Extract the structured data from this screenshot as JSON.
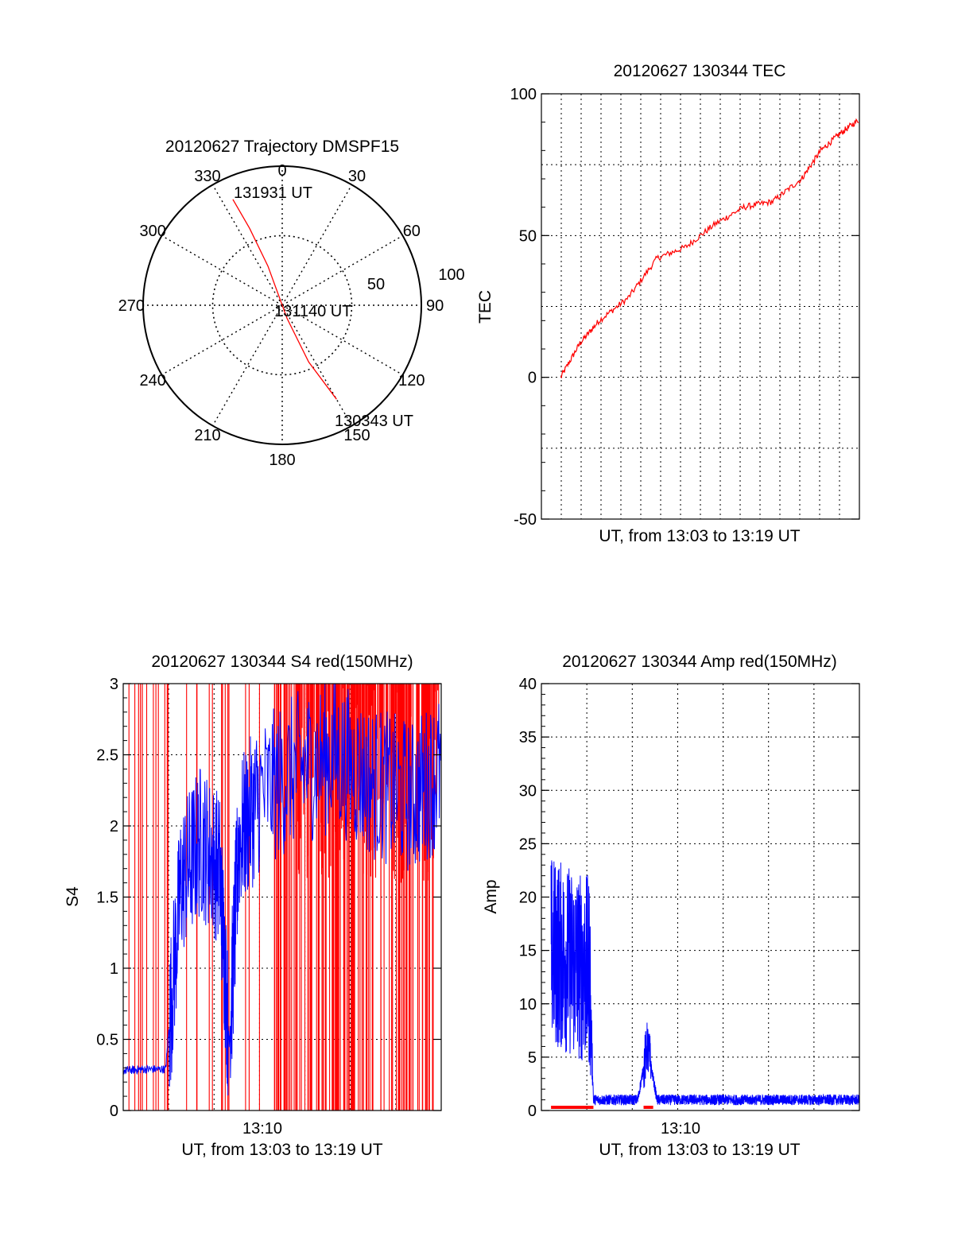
{
  "colors": {
    "red": "#ff0000",
    "blue": "#0000ff",
    "axis": "#000000",
    "grid": "#000000"
  },
  "chart_data": [
    {
      "type": "polar",
      "title": "20120627 Trajectory DMSPF15",
      "angle_labels": [
        "0",
        "30",
        "60",
        "90",
        "120",
        "150",
        "180",
        "210",
        "240",
        "270",
        "300",
        "330"
      ],
      "radius_labels": [
        "50",
        "100"
      ],
      "radius_max": 100,
      "grid": true,
      "point_labels": {
        "end": "131931 UT",
        "mid": "131140 UT",
        "start": "130343 UT"
      },
      "trajectory": {
        "color": "red",
        "points": [
          {
            "az": 335,
            "zen": 84
          },
          {
            "az": 337,
            "zen": 60
          },
          {
            "az": 340,
            "zen": 30
          },
          {
            "az": 160,
            "zen": 10
          },
          {
            "az": 155,
            "zen": 45
          },
          {
            "az": 150,
            "zen": 78
          }
        ]
      }
    },
    {
      "type": "line",
      "title": "20120627 130344 TEC",
      "xlabel": "UT, from 13:03 to 13:19 UT",
      "ylabel": "TEC",
      "ylim": [
        -50,
        100
      ],
      "yticks": [
        "100",
        "50",
        "0",
        "-50"
      ],
      "xlim_minutes": [
        13.0,
        29.5
      ],
      "grid": true,
      "series": [
        {
          "color": "red",
          "x": [
            14.0,
            15.0,
            16.0,
            17.5,
            19.0,
            20.5,
            22.0,
            23.5,
            25.0,
            26.5,
            27.5,
            28.5,
            29.5
          ],
          "y": [
            0,
            12,
            20,
            28,
            42,
            46,
            54,
            60,
            62,
            70,
            80,
            86,
            91
          ]
        }
      ]
    },
    {
      "type": "line",
      "title": "20120627 130344 S4 red(150MHz)",
      "xlabel": "UT, from 13:03 to 13:19 UT",
      "ylabel": "S4",
      "ylim": [
        0,
        3
      ],
      "yticks": [
        "3",
        "2.5",
        "2",
        "1.5",
        "1",
        "0.5",
        "0"
      ],
      "xtick_label": "13:10",
      "xlim_minutes": [
        3.0,
        19.5
      ],
      "grid": true,
      "series": [
        {
          "color": "blue",
          "x": [
            3.0,
            4.0,
            5.2,
            6.0,
            7.0,
            8.0,
            8.5,
            9.0,
            10.0,
            12.0,
            14.0,
            16.0,
            18.0,
            19.5
          ],
          "y": [
            0.28,
            0.29,
            0.29,
            1.6,
            1.9,
            1.7,
            0.45,
            1.9,
            2.2,
            2.4,
            2.5,
            2.3,
            2.2,
            2.4
          ]
        },
        {
          "color": "red",
          "x": [],
          "y": []
        }
      ]
    },
    {
      "type": "line",
      "title": "20120627 130344 Amp red(150MHz)",
      "xlabel": "UT, from 13:03 to 13:19 UT",
      "ylabel": "Amp",
      "ylim": [
        0,
        40
      ],
      "yticks": [
        "40",
        "35",
        "30",
        "25",
        "20",
        "15",
        "10",
        "5",
        "0"
      ],
      "xtick_label": "13:10",
      "xlim_minutes": [
        3.0,
        19.5
      ],
      "grid": true,
      "series": [
        {
          "color": "blue",
          "x": [
            3.5,
            4.5,
            5.5,
            5.7,
            8.0,
            8.5,
            9.0,
            12.0,
            15.0,
            19.5
          ],
          "y": [
            15,
            14,
            13,
            1,
            1,
            6,
            1,
            1,
            1,
            1
          ]
        },
        {
          "color": "red",
          "x": [
            3.5,
            5.7,
            8.3,
            8.8
          ],
          "y": [
            0.3,
            0.3,
            0.3,
            0.3
          ]
        }
      ]
    }
  ]
}
